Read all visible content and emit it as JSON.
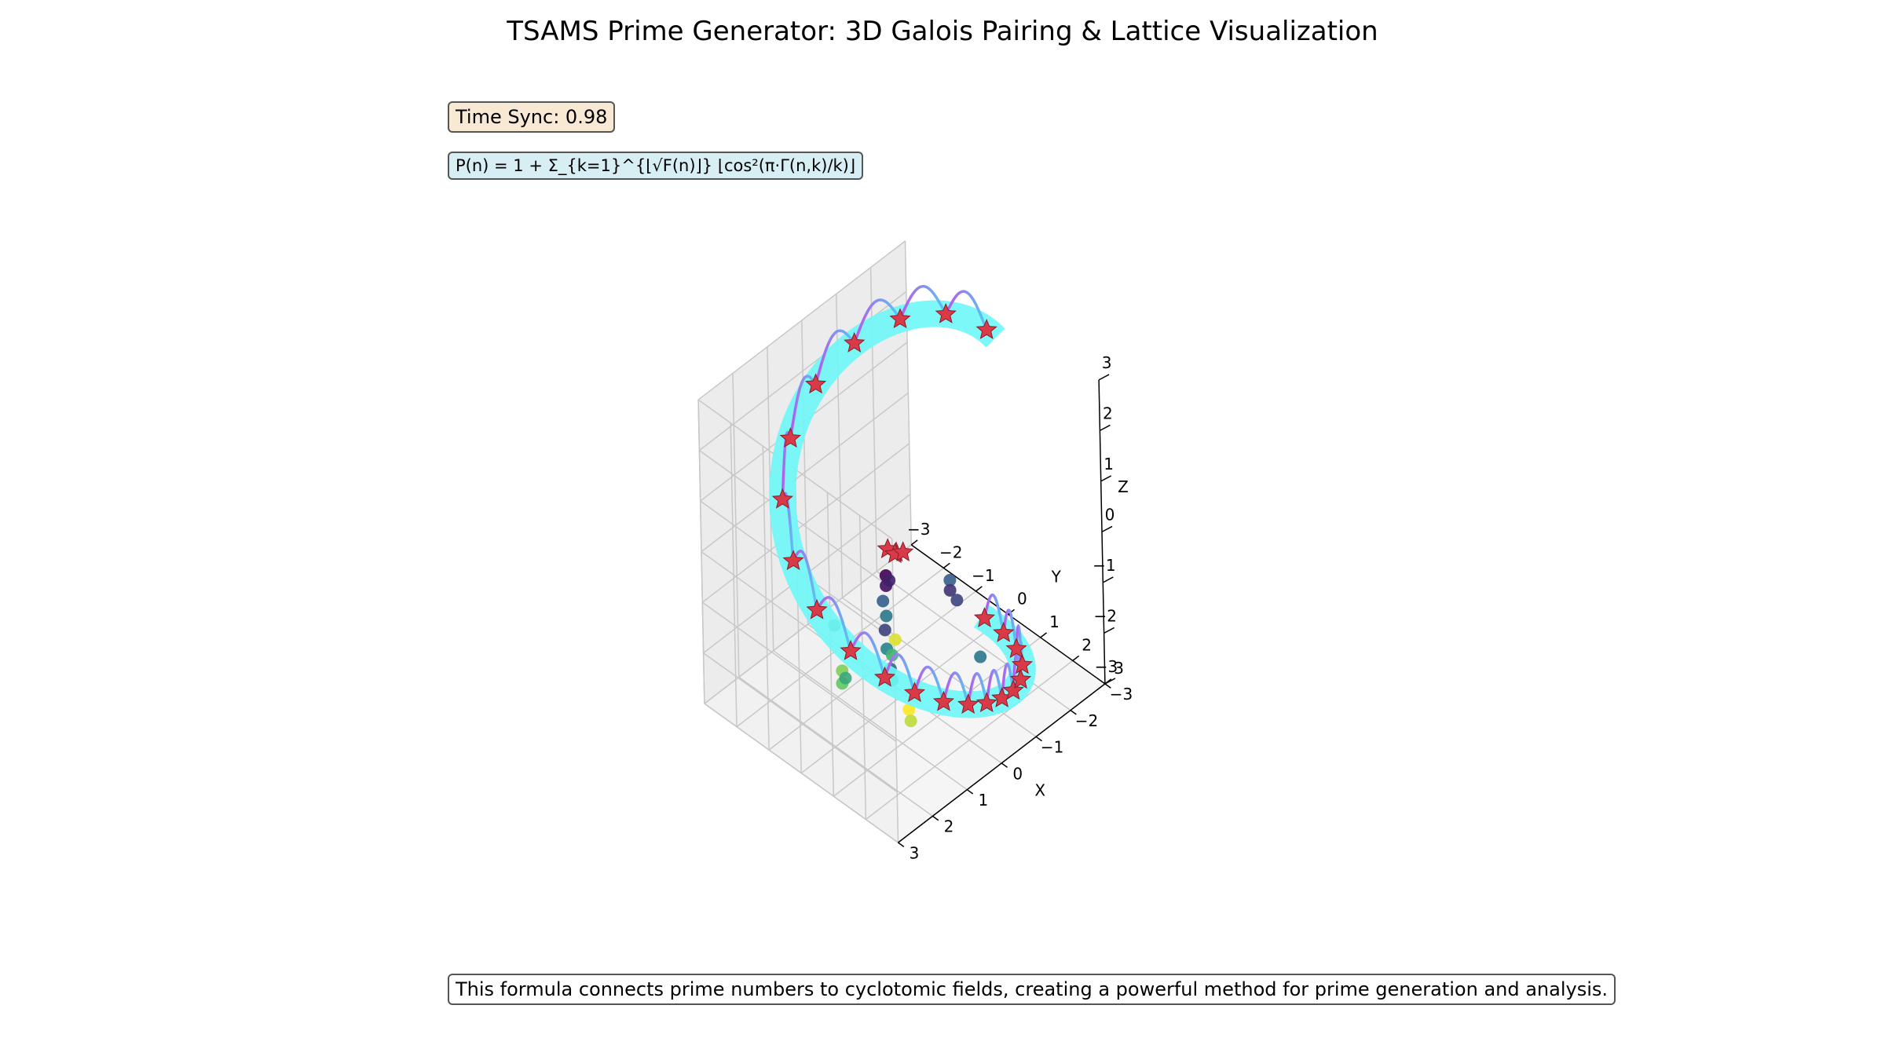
{
  "title": "TSAMS Prime Generator: 3D Galois Pairing & Lattice Visualization",
  "time_sync": "Time Sync: 0.98",
  "formula": "P(n) = 1 + Σ_{k=1}^{⌊√F(n)⌋} ⌊cos²(π·Γ(n,k)/k)⌋",
  "caption": "This formula connects prime numbers to cyclotomic fields, creating a powerful method for prime generation and analysis.",
  "colors": {
    "band": "#6ff7f7",
    "star": "#d93a48",
    "arc_start": "#bb55ee",
    "arc_end": "#55c8f2",
    "pane_left": "#f1f1f1",
    "pane_right": "#ececec",
    "pane_floor": "#f5f5f5",
    "grid": "#c8c8c8"
  },
  "chart_data": {
    "type": "scatter3d",
    "title": "TSAMS Prime Generator: 3D Galois Pairing & Lattice Visualization",
    "xlabel": "X",
    "ylabel": "Y",
    "zlabel": "Z",
    "xlim": [
      -3,
      3
    ],
    "ylim": [
      -3,
      3
    ],
    "zlim": [
      -3,
      3
    ],
    "x_ticks": [
      "−3",
      "−2",
      "−1",
      "0",
      "1",
      "2",
      "3"
    ],
    "y_ticks": [
      "−3",
      "−2",
      "−1",
      "0",
      "1",
      "2",
      "3"
    ],
    "z_ticks": [
      "−3",
      "−2",
      "−1",
      "0",
      "1",
      "2",
      "3"
    ],
    "grid": true,
    "spiral": {
      "type": "line",
      "description_style": "thick cyan band",
      "parametric": "x = 2.5 cos t, y = 2.5 sin t, z = 2.9 sin(t/2)",
      "t_range": [
        3.0,
        9.55
      ]
    },
    "stars": {
      "type": "scatter",
      "marker": "star",
      "t_values": [
        3.12,
        3.55,
        3.95,
        4.35,
        4.75,
        5.15,
        5.55,
        5.95,
        6.3,
        6.65,
        6.95,
        7.2,
        7.45,
        7.68,
        7.88,
        8.08,
        8.28,
        8.5,
        8.75,
        9.0,
        9.25,
        9.5
      ],
      "inner_star_points": [
        {
          "x": -0.2,
          "y": -0.4,
          "z": -0.5
        },
        {
          "x": -0.05,
          "y": -0.5,
          "z": -0.4
        },
        {
          "x": -0.3,
          "y": -0.55,
          "z": -0.65
        },
        {
          "x": -0.35,
          "y": -0.35,
          "z": -0.55
        }
      ]
    },
    "arcs": {
      "type": "line",
      "description_style": "arcs between consecutive stars, purple to blue"
    },
    "lattice_points": {
      "type": "scatter",
      "colormap": "viridis",
      "points": [
        {
          "x": 0.2,
          "y": -0.3,
          "z": -0.7,
          "c": 0.0
        },
        {
          "x": 0.2,
          "y": -0.3,
          "z": -0.9,
          "c": 0.05
        },
        {
          "x": 0.15,
          "y": -0.25,
          "z": -0.8,
          "c": 0.1
        },
        {
          "x": 0.25,
          "y": -0.35,
          "z": -1.2,
          "c": 0.3
        },
        {
          "x": 0.3,
          "y": -0.2,
          "z": -1.4,
          "c": 0.4
        },
        {
          "x": 0.3,
          "y": -0.25,
          "z": -1.7,
          "c": 0.2
        },
        {
          "x": 0.35,
          "y": -0.15,
          "z": -2.0,
          "c": 0.45
        },
        {
          "x": 0.3,
          "y": -0.1,
          "z": -2.4,
          "c": 0.35
        },
        {
          "x": 0.3,
          "y": -0.05,
          "z": -2.6,
          "c": 0.5
        },
        {
          "x": 0.2,
          "y": -0.15,
          "z": -2.2,
          "c": 0.65
        },
        {
          "x": 0.15,
          "y": -0.1,
          "z": -1.9,
          "c": 0.95
        },
        {
          "x": 0.25,
          "y": 0.4,
          "z": -3.0,
          "c": 1.0
        },
        {
          "x": 0.25,
          "y": 0.45,
          "z": -3.2,
          "c": 0.9
        },
        {
          "x": -0.9,
          "y": 0.5,
          "z": -1.0,
          "c": 0.3
        },
        {
          "x": -0.9,
          "y": 0.5,
          "z": -1.2,
          "c": 0.15
        },
        {
          "x": -1.0,
          "y": 0.6,
          "z": -1.4,
          "c": 0.2
        },
        {
          "x": -1.0,
          "y": 1.3,
          "z": -2.2,
          "c": 0.4
        },
        {
          "x": 1.7,
          "y": -0.3,
          "z": -0.9,
          "c": 0.55
        },
        {
          "x": 1.5,
          "y": -0.3,
          "z": -1.9,
          "c": 0.8
        },
        {
          "x": 1.55,
          "y": -0.25,
          "z": -2.1,
          "c": 0.75
        },
        {
          "x": 1.5,
          "y": -0.2,
          "z": -2.0,
          "c": 0.6
        }
      ]
    }
  }
}
